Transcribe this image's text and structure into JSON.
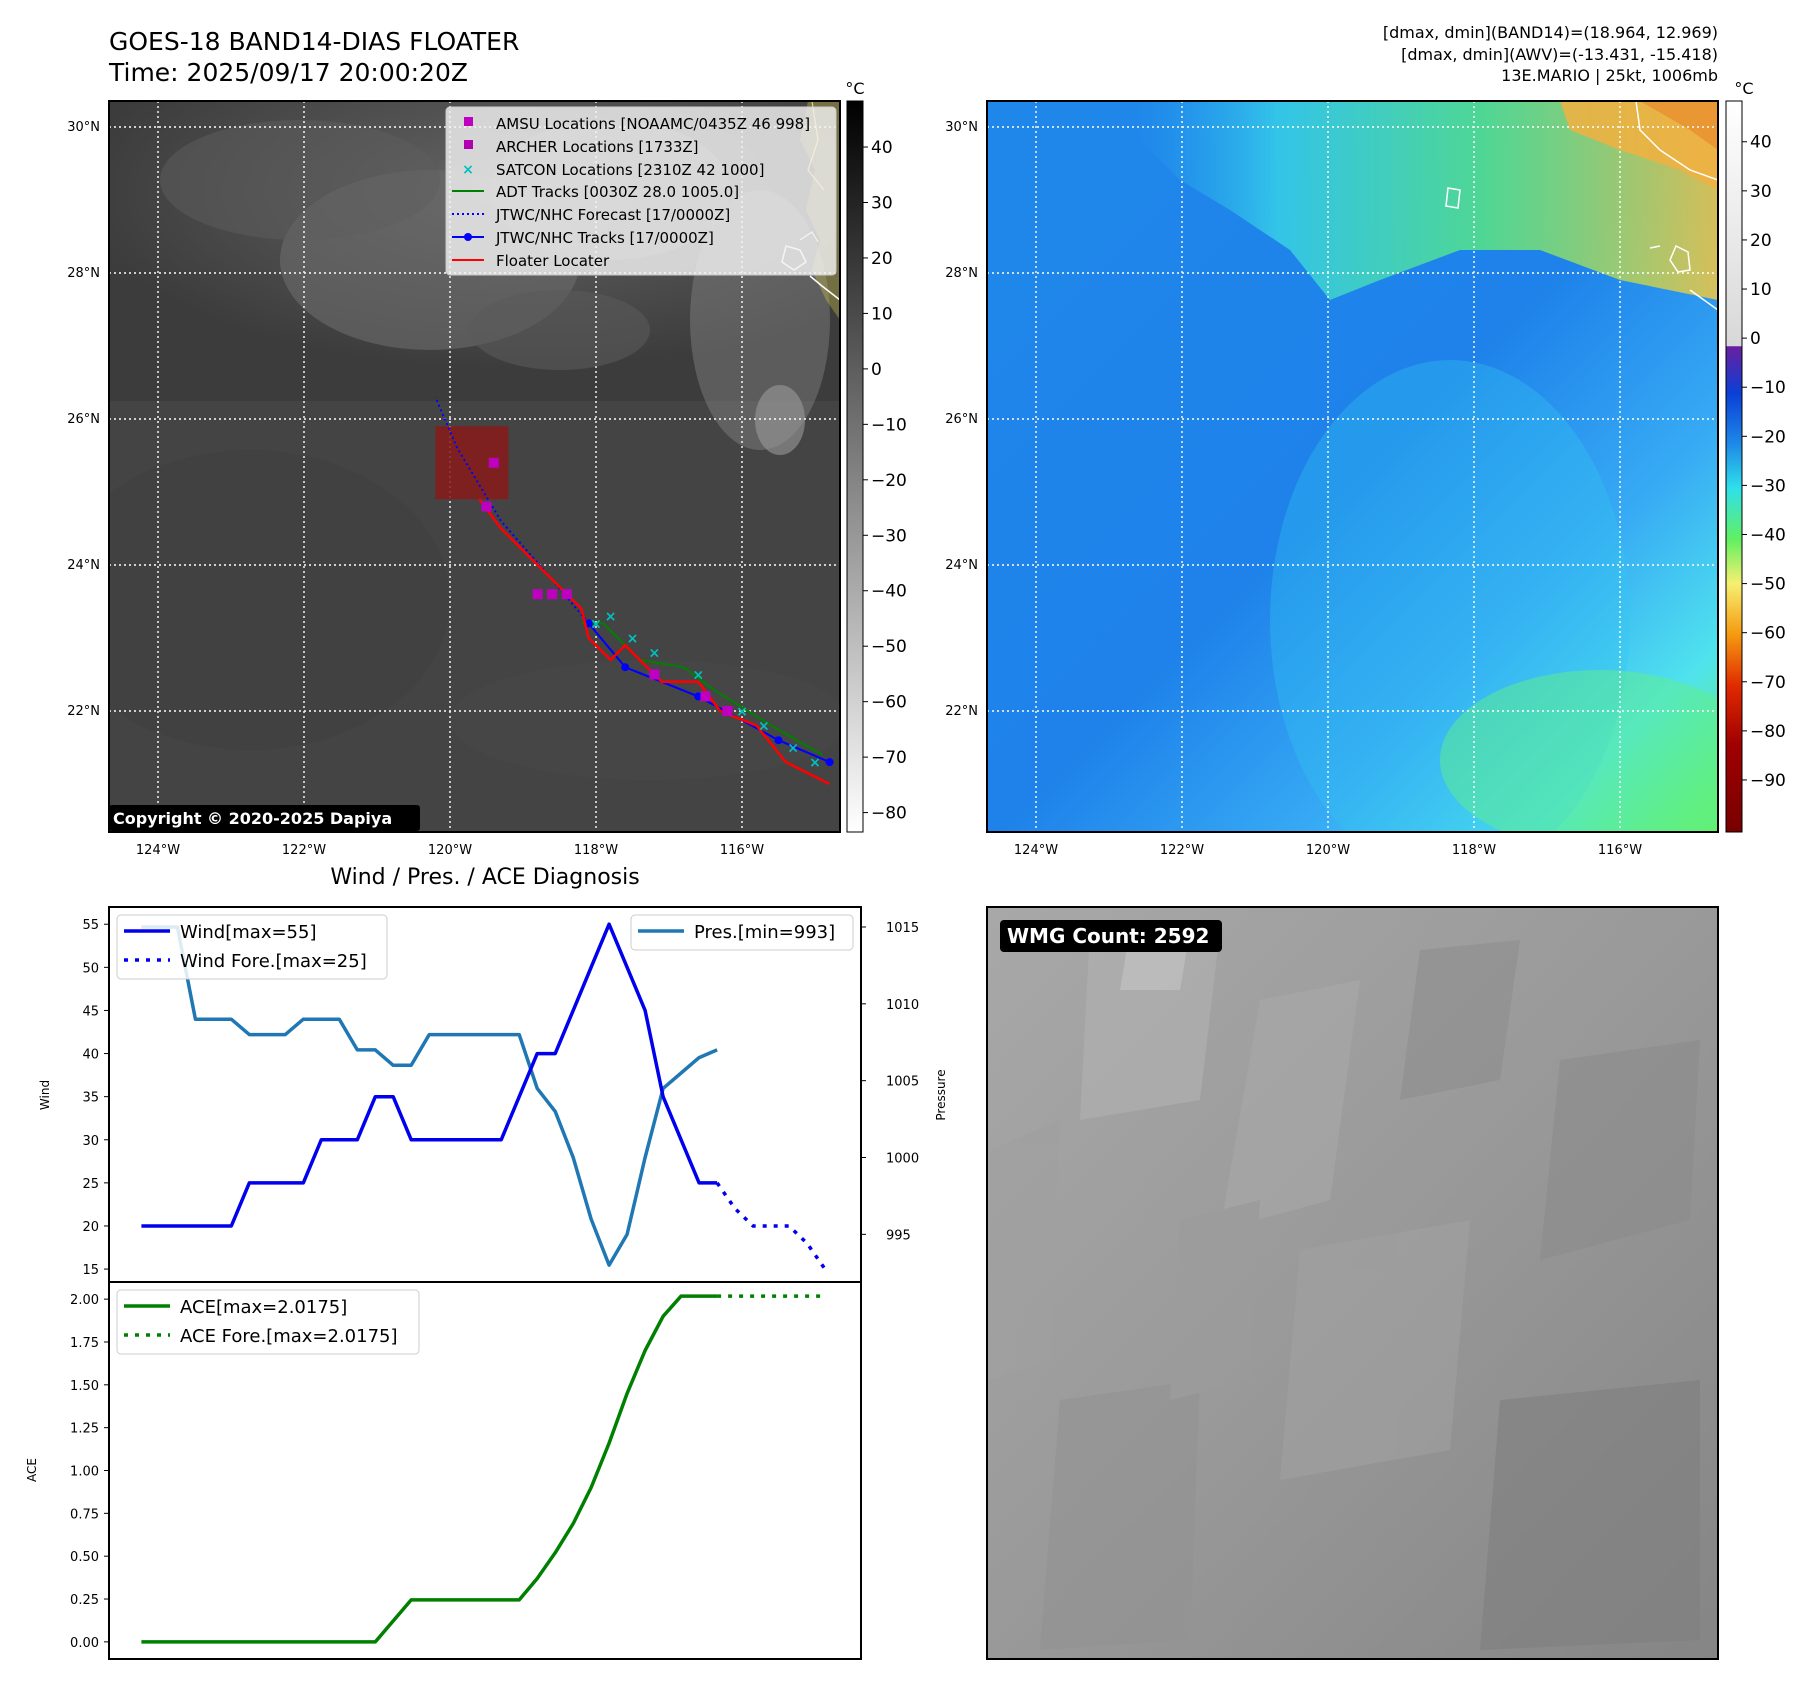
{
  "header": {
    "title_line1": "GOES-18 BAND14-DIAS FLOATER",
    "title_line2": "Time: 2025/09/17 20:00:20Z",
    "stats_line1": "[dmax, dmin](BAND14)=(18.964, 12.969)",
    "stats_line2": "[dmax, dmin](AWV)=(-13.431, -15.418)",
    "stats_line3": "13E.MARIO | 25kt, 1006mb"
  },
  "copyright": "Copyright © 2020-2025 Dapiya",
  "wmg_label": "WMG Count: 2592",
  "colors": {
    "amsu": "#c000c0",
    "archer": "#b000b0",
    "satcon": "#00c0c0",
    "adt": "#008000",
    "jtwc": "#0000ff",
    "floater": "#ff0000",
    "wind": "#0000ee",
    "pressure": "#1f77b4",
    "ace": "#008000"
  },
  "chart_data": [
    {
      "type": "map",
      "name": "band14",
      "colorbar_unit": "°C",
      "colorbar_ticks": [
        "40",
        "30",
        "20",
        "10",
        "0",
        "−10",
        "−20",
        "−30",
        "−40",
        "−50",
        "−60",
        "−70",
        "−80"
      ],
      "colorbar_values": [
        40,
        30,
        20,
        10,
        0,
        -10,
        -20,
        -30,
        -40,
        -50,
        -60,
        -70,
        -80
      ],
      "lon_ticks": [
        "124°W",
        "122°W",
        "120°W",
        "118°W",
        "116°W"
      ],
      "lon_values": [
        -124,
        -122,
        -120,
        -118,
        -116
      ],
      "lat_ticks": [
        "30°N",
        "28°N",
        "26°N",
        "24°N",
        "22°N"
      ],
      "lat_values": [
        30,
        28,
        26,
        24,
        22
      ],
      "legend": [
        "AMSU Locations [NOAAMC/0435Z 46 998]",
        "ARCHER Locations [1733Z]",
        "SATCON Locations [2310Z 42 1000]",
        "ADT Tracks [0030Z 28.0 1005.0]",
        "JTWC/NHC Forecast [17/0000Z]",
        "JTWC/NHC Tracks [17/0000Z]",
        "Floater Locater"
      ],
      "jtwc_track": [
        [
          -114.8,
          21.3
        ],
        [
          -115.5,
          21.6
        ],
        [
          -116.6,
          22.2
        ],
        [
          -117.6,
          22.6
        ],
        [
          -118.1,
          23.2
        ]
      ],
      "jtwc_forecast": [
        [
          -118.1,
          23.2
        ],
        [
          -118.6,
          23.8
        ],
        [
          -119.3,
          24.6
        ],
        [
          -119.9,
          25.6
        ],
        [
          -120.2,
          26.3
        ]
      ],
      "floater_track": [
        [
          -114.8,
          21.0
        ],
        [
          -115.4,
          21.3
        ],
        [
          -115.8,
          21.8
        ],
        [
          -116.3,
          22.0
        ],
        [
          -116.6,
          22.4
        ],
        [
          -117.1,
          22.4
        ],
        [
          -117.6,
          22.9
        ],
        [
          -117.8,
          22.7
        ],
        [
          -118.1,
          23.0
        ],
        [
          -118.2,
          23.4
        ],
        [
          -118.7,
          23.9
        ],
        [
          -119.3,
          24.5
        ],
        [
          -119.6,
          24.9
        ]
      ],
      "adt_track": [
        [
          -114.9,
          21.4
        ],
        [
          -115.6,
          21.8
        ],
        [
          -116.4,
          22.3
        ],
        [
          -116.8,
          22.6
        ],
        [
          -117.4,
          22.7
        ],
        [
          -117.9,
          23.2
        ],
        [
          -118.2,
          23.2
        ]
      ],
      "satcon_points": [
        [
          -115.0,
          21.3
        ],
        [
          -115.3,
          21.5
        ],
        [
          -115.7,
          21.8
        ],
        [
          -116.0,
          22.0
        ],
        [
          -116.6,
          22.5
        ],
        [
          -117.2,
          22.8
        ],
        [
          -117.5,
          23.0
        ],
        [
          -117.8,
          23.3
        ],
        [
          -118.0,
          23.2
        ]
      ],
      "amsu_points": [
        [
          -119.4,
          25.4
        ],
        [
          -119.5,
          24.8
        ],
        [
          -118.8,
          23.6
        ],
        [
          -118.6,
          23.6
        ],
        [
          -118.4,
          23.6
        ],
        [
          -117.2,
          22.5
        ],
        [
          -116.5,
          22.2
        ],
        [
          -116.2,
          22.0
        ]
      ],
      "floater_box": {
        "lon_min": -120.2,
        "lon_max": -119.2,
        "lat_min": 24.9,
        "lat_max": 25.9
      }
    },
    {
      "type": "map",
      "name": "awv",
      "colorbar_unit": "°C",
      "colorbar_ticks": [
        "40",
        "30",
        "20",
        "10",
        "0",
        "−10",
        "−20",
        "−30",
        "−40",
        "−50",
        "−60",
        "−70",
        "−80",
        "−90"
      ],
      "colorbar_values": [
        40,
        30,
        20,
        10,
        0,
        -10,
        -20,
        -30,
        -40,
        -50,
        -60,
        -70,
        -80,
        -90
      ],
      "lon_ticks": [
        "124°W",
        "122°W",
        "120°W",
        "118°W",
        "116°W"
      ],
      "lon_values": [
        -124,
        -122,
        -120,
        -118,
        -116
      ],
      "lat_ticks": [
        "30°N",
        "28°N",
        "26°N",
        "24°N",
        "22°N"
      ],
      "lat_values": [
        30,
        28,
        26,
        24,
        22
      ]
    },
    {
      "type": "line",
      "name": "wind-pressure",
      "title": "Wind / Pres. / ACE Diagnosis",
      "ylabel": "Wind",
      "ylabel_right": "Pressure",
      "ylim": [
        13.5,
        57
      ],
      "ylim_right": [
        991.9,
        1016.3
      ],
      "xlim": [
        -1.8,
        40
      ],
      "yticks": [
        55,
        50,
        45,
        40,
        35,
        30,
        25,
        20,
        15
      ],
      "yticks_right": [
        1015,
        1010,
        1005,
        1000,
        995
      ],
      "series": [
        {
          "name": "Wind[max=55]",
          "style": "solid",
          "x": [
            0,
            1,
            2,
            3,
            4,
            5,
            6,
            7,
            8,
            9,
            10,
            11,
            12,
            13,
            14,
            15,
            16,
            17,
            18,
            19,
            20,
            21,
            22,
            23,
            24,
            25,
            26,
            27,
            28,
            29,
            30,
            31,
            32
          ],
          "values": [
            20,
            20,
            20,
            20,
            20,
            20,
            25,
            25,
            25,
            25,
            30,
            30,
            30,
            35,
            35,
            30,
            30,
            30,
            30,
            30,
            30,
            35,
            40,
            40,
            45,
            50,
            55,
            50,
            45,
            35,
            30,
            25,
            25
          ]
        },
        {
          "name": "Wind Fore.[max=25]",
          "style": "dotted",
          "x": [
            32,
            33,
            34,
            35,
            36,
            37,
            38
          ],
          "values": [
            25,
            22,
            20,
            20,
            20,
            18,
            15
          ]
        },
        {
          "name": "Pres.[min=993]",
          "style": "solid",
          "x": [
            0,
            1,
            2,
            3,
            4,
            5,
            6,
            7,
            8,
            9,
            10,
            11,
            12,
            13,
            14,
            15,
            16,
            17,
            18,
            19,
            20,
            21,
            22,
            23,
            24,
            25,
            26,
            27,
            28,
            29,
            30,
            31,
            32
          ],
          "values": [
            1015,
            1015,
            1015,
            1009,
            1009,
            1009,
            1008,
            1008,
            1008,
            1009,
            1009,
            1009,
            1007,
            1007,
            1006,
            1006,
            1008,
            1008,
            1008,
            1008,
            1008,
            1008,
            1004.5,
            1003,
            1000,
            996,
            993,
            995,
            1000,
            1004.5,
            1005.5,
            1006.5,
            1007
          ]
        }
      ]
    },
    {
      "type": "line",
      "name": "ace",
      "ylabel": "ACE",
      "ylim": [
        -0.1,
        2.1
      ],
      "xlim": [
        -1.8,
        40
      ],
      "yticks": [
        "2.00",
        "1.75",
        "1.50",
        "1.25",
        "1.00",
        "0.75",
        "0.50",
        "0.25",
        "0.00"
      ],
      "ytick_values": [
        2.0,
        1.75,
        1.5,
        1.25,
        1.0,
        0.75,
        0.5,
        0.25,
        0.0
      ],
      "series": [
        {
          "name": "ACE[max=2.0175]",
          "style": "solid",
          "x": [
            0,
            13,
            15,
            21,
            22,
            23,
            24,
            25,
            26,
            27,
            28,
            29,
            30,
            31,
            32
          ],
          "values": [
            0,
            0,
            0.245,
            0.245,
            0.37,
            0.52,
            0.69,
            0.9,
            1.16,
            1.45,
            1.7,
            1.9,
            2.0175,
            2.0175,
            2.0175
          ]
        },
        {
          "name": "ACE Fore.[max=2.0175]",
          "style": "dotted",
          "x": [
            32,
            38
          ],
          "values": [
            2.0175,
            2.0175
          ]
        }
      ]
    }
  ]
}
